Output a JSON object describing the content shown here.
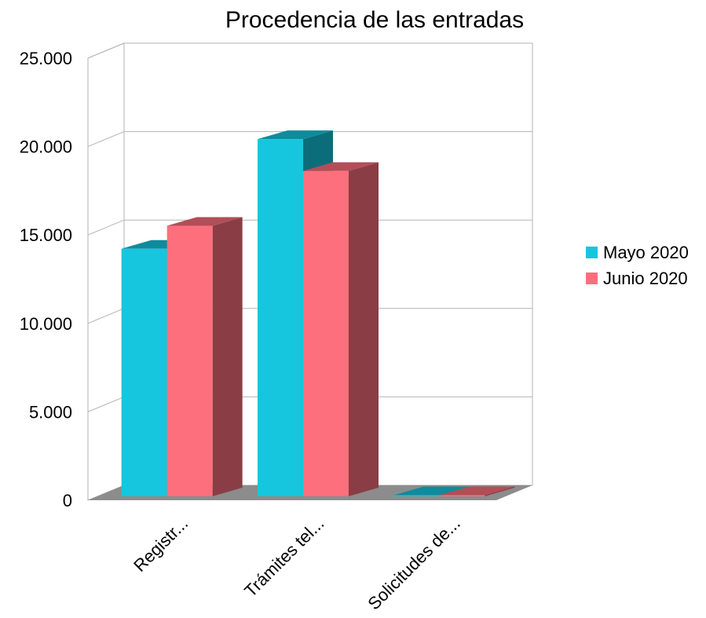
{
  "chart_data": {
    "type": "bar",
    "title": "Procedencia de las entradas",
    "xlabel": "",
    "ylabel": "",
    "categories": [
      "Registr...",
      "Trámites tel...",
      "Solicitudes de..."
    ],
    "series": [
      {
        "name": "Mayo 2020",
        "values": [
          14000,
          20200,
          60
        ],
        "color": "#16c6de"
      },
      {
        "name": "Junio 2020",
        "values": [
          15300,
          18400,
          60
        ],
        "color": "#fd6f7d"
      }
    ],
    "ylim": [
      0,
      25000
    ],
    "yticks": [
      "0",
      "5.000",
      "10.000",
      "15.000",
      "20.000",
      "25.000"
    ],
    "grid": true,
    "three_d": true,
    "legend_position": "right"
  }
}
